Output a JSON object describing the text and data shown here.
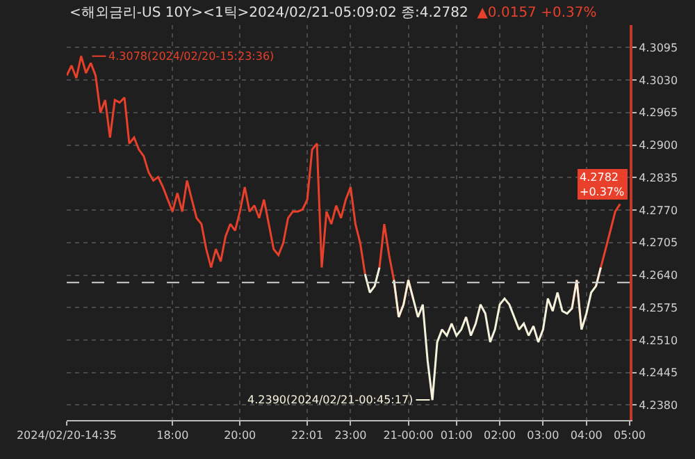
{
  "chart_data": {
    "type": "line",
    "title": "<해외금리-US 10Y><1틱>2024/02/21-05:09:02 종:4.2782",
    "annotations": [
      "▲0.0157 +0.37%",
      "4.3078(2024/02/20-15:23:36)",
      "4.2390(2024/02/21-00:45:17)",
      "4.2782\n+0.37%"
    ],
    "categories": [
      "2024/02/20-14:35",
      null,
      null,
      null,
      null,
      null,
      null,
      null,
      null,
      null,
      null,
      null,
      null,
      null,
      null,
      null,
      null,
      null,
      null,
      null,
      null,
      null,
      "18:00",
      null,
      null,
      null,
      null,
      null,
      null,
      null,
      null,
      null,
      null,
      null,
      null,
      null,
      "20:00",
      null,
      null,
      null,
      null,
      null,
      null,
      null,
      null,
      null,
      null,
      null,
      null,
      null,
      "22:01",
      null,
      null,
      null,
      null,
      null,
      null,
      null,
      null,
      "23:00",
      null,
      null,
      null,
      null,
      null,
      null,
      null,
      null,
      null,
      null,
      null,
      "21-00:00",
      null,
      null,
      null,
      null,
      null,
      null,
      null,
      null,
      null,
      "01:00",
      null,
      null,
      null,
      null,
      null,
      null,
      null,
      null,
      "02:00",
      null,
      null,
      null,
      null,
      null,
      null,
      null,
      null,
      "03:00",
      null,
      null,
      null,
      null,
      null,
      null,
      null,
      null,
      "04:00",
      null,
      null,
      null,
      null,
      null,
      null,
      null,
      null,
      "05:00"
    ],
    "series": [
      {
        "color": "#e8402a",
        "values": [
          4.3039,
          4.3059,
          4.3034,
          4.3078,
          4.3044,
          4.3064,
          4.3039,
          4.2965,
          4.299,
          4.2915,
          4.299,
          4.2985,
          4.2995,
          4.2903,
          4.2915,
          4.2891,
          4.2878,
          4.2846,
          4.2829,
          4.2836,
          4.2816,
          4.2791,
          4.2767,
          4.2804,
          4.2767,
          4.2829,
          4.2791,
          4.2754,
          4.2742,
          4.2692,
          4.2655,
          4.2692,
          4.2667,
          4.2717,
          4.2742,
          4.2729,
          4.2767,
          4.2816,
          4.2767,
          4.2779,
          4.2754,
          4.2791,
          4.2742,
          4.2692,
          4.268,
          4.2704,
          4.2754,
          4.2767,
          4.2767,
          4.2771,
          4.2791,
          4.2891,
          4.2903,
          4.2655,
          4.2767,
          4.2742,
          4.2779,
          4.2754,
          4.2791,
          4.2816,
          4.2742,
          4.2704,
          4.2642,
          null,
          null,
          4.2655,
          4.2742,
          4.268,
          4.263,
          4.2556,
          4.2581,
          4.263,
          4.2593,
          null,
          null,
          null,
          null,
          null,
          null,
          null,
          null,
          null,
          null,
          null,
          null,
          null,
          null,
          null,
          null,
          null,
          null,
          null,
          null,
          null,
          null,
          null,
          null,
          null,
          null,
          null,
          null,
          null,
          null,
          null,
          null,
          4.2573,
          4.263,
          4.2531,
          null,
          null,
          4.2618,
          4.2655,
          4.2692,
          4.2729,
          4.2767,
          4.2782,
          null,
          null
        ]
      },
      {
        "color": "#f5f2dc",
        "values": [
          null,
          null,
          null,
          null,
          null,
          null,
          null,
          null,
          null,
          null,
          null,
          null,
          null,
          null,
          null,
          null,
          null,
          null,
          null,
          null,
          null,
          null,
          null,
          null,
          null,
          null,
          null,
          null,
          null,
          null,
          null,
          null,
          null,
          null,
          null,
          null,
          null,
          null,
          null,
          null,
          null,
          null,
          null,
          null,
          null,
          null,
          null,
          null,
          null,
          null,
          null,
          null,
          null,
          null,
          null,
          null,
          null,
          null,
          null,
          null,
          null,
          null,
          4.2642,
          4.2605,
          4.2618,
          4.2655,
          null,
          null,
          4.263,
          4.2556,
          4.2581,
          4.263,
          4.2593,
          4.2556,
          4.2581,
          4.2469,
          4.239,
          4.2506,
          4.2531,
          4.2519,
          4.2543,
          4.2519,
          4.2531,
          4.2556,
          4.2519,
          4.2543,
          4.2581,
          4.2563,
          4.2506,
          4.2531,
          4.2581,
          4.2593,
          4.2581,
          4.2556,
          4.2531,
          4.2543,
          4.2519,
          4.2538,
          4.2506,
          4.2531,
          4.2593,
          4.2568,
          4.2605,
          4.2568,
          4.2563,
          4.2573,
          4.263,
          4.2531,
          4.2563,
          4.2605,
          4.2618,
          4.2655,
          null,
          null,
          null,
          null,
          null,
          null
        ]
      }
    ],
    "ylim": [
      4.235,
      4.314
    ],
    "yticks": [
      {
        "value": 4.238,
        "label": "4.2380"
      },
      4.2445,
      {
        "value": 4.251,
        "label": "4.2510"
      },
      4.2575,
      {
        "value": 4.264,
        "label": "4.2640"
      },
      4.2705,
      {
        "value": 4.277,
        "label": "4.2770"
      },
      4.2835,
      {
        "value": 4.29,
        "label": "4.2900"
      },
      4.2965,
      {
        "value": 4.303,
        "label": "4.3030"
      },
      4.3095
    ],
    "grid": true,
    "ref_lines": [
      {
        "axis": "y",
        "value": 4.2625,
        "color": "#d0d0d0",
        "line_style": "dashed"
      }
    ]
  }
}
